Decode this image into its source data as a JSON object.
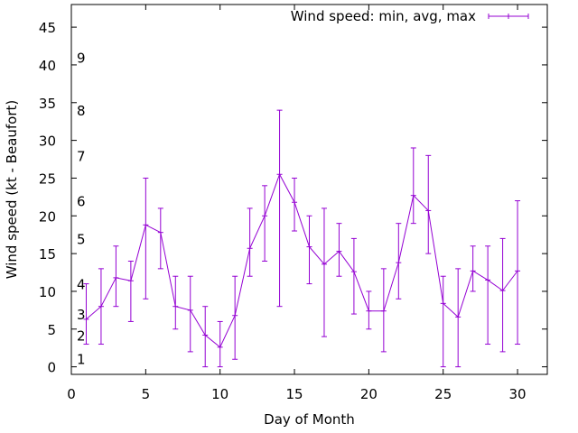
{
  "chart_data": {
    "type": "line",
    "title": "",
    "xlabel": "Day of Month",
    "ylabel": "Wind speed (kt - Beaufort)",
    "xlim": [
      0,
      32
    ],
    "ylim": [
      -1,
      48
    ],
    "xticks": [
      0,
      5,
      10,
      15,
      20,
      25,
      30
    ],
    "yticks": [
      0,
      5,
      10,
      15,
      20,
      25,
      30,
      35,
      40,
      45
    ],
    "beaufort_labels": [
      {
        "label": "1",
        "y": 1.1
      },
      {
        "label": "2",
        "y": 4.2
      },
      {
        "label": "3",
        "y": 7.0
      },
      {
        "label": "4",
        "y": 11.0
      },
      {
        "label": "5",
        "y": 17.0
      },
      {
        "label": "6",
        "y": 22.0
      },
      {
        "label": "7",
        "y": 28.0
      },
      {
        "label": "8",
        "y": 34.0
      },
      {
        "label": "9",
        "y": 41.0
      }
    ],
    "legend": {
      "label": "Wind speed: min, avg, max",
      "position": "top-right"
    },
    "color": "#9400d3",
    "series": [
      {
        "name": "Wind speed: min, avg, max",
        "x": [
          1,
          2,
          3,
          4,
          5,
          6,
          7,
          8,
          9,
          10,
          11,
          12,
          13,
          14,
          15,
          16,
          17,
          18,
          19,
          20,
          21,
          22,
          23,
          24,
          25,
          26,
          27,
          28,
          29,
          30
        ],
        "avg": [
          6.3,
          8,
          11.8,
          11.4,
          18.8,
          17.8,
          8,
          7.5,
          4.2,
          2.6,
          6.8,
          15.7,
          20,
          25.5,
          21.8,
          15.9,
          13.6,
          15.3,
          12.6,
          7.4,
          7.4,
          13.8,
          22.7,
          20.7,
          8.4,
          6.6,
          12.7,
          11.5,
          10.1,
          12.7
        ],
        "min": [
          3,
          3,
          8,
          6,
          9,
          13,
          5,
          2,
          0,
          0,
          1,
          12,
          14,
          8,
          18,
          11,
          4,
          12,
          7,
          5,
          2,
          9,
          19,
          15,
          0,
          0,
          10,
          3,
          2,
          3
        ],
        "max": [
          11,
          13,
          16,
          14,
          25,
          21,
          12,
          12,
          8,
          6,
          12,
          21,
          24,
          34,
          25,
          20,
          21,
          19,
          17,
          10,
          13,
          19,
          29,
          28,
          12,
          13,
          16,
          16,
          17,
          22
        ]
      }
    ]
  }
}
